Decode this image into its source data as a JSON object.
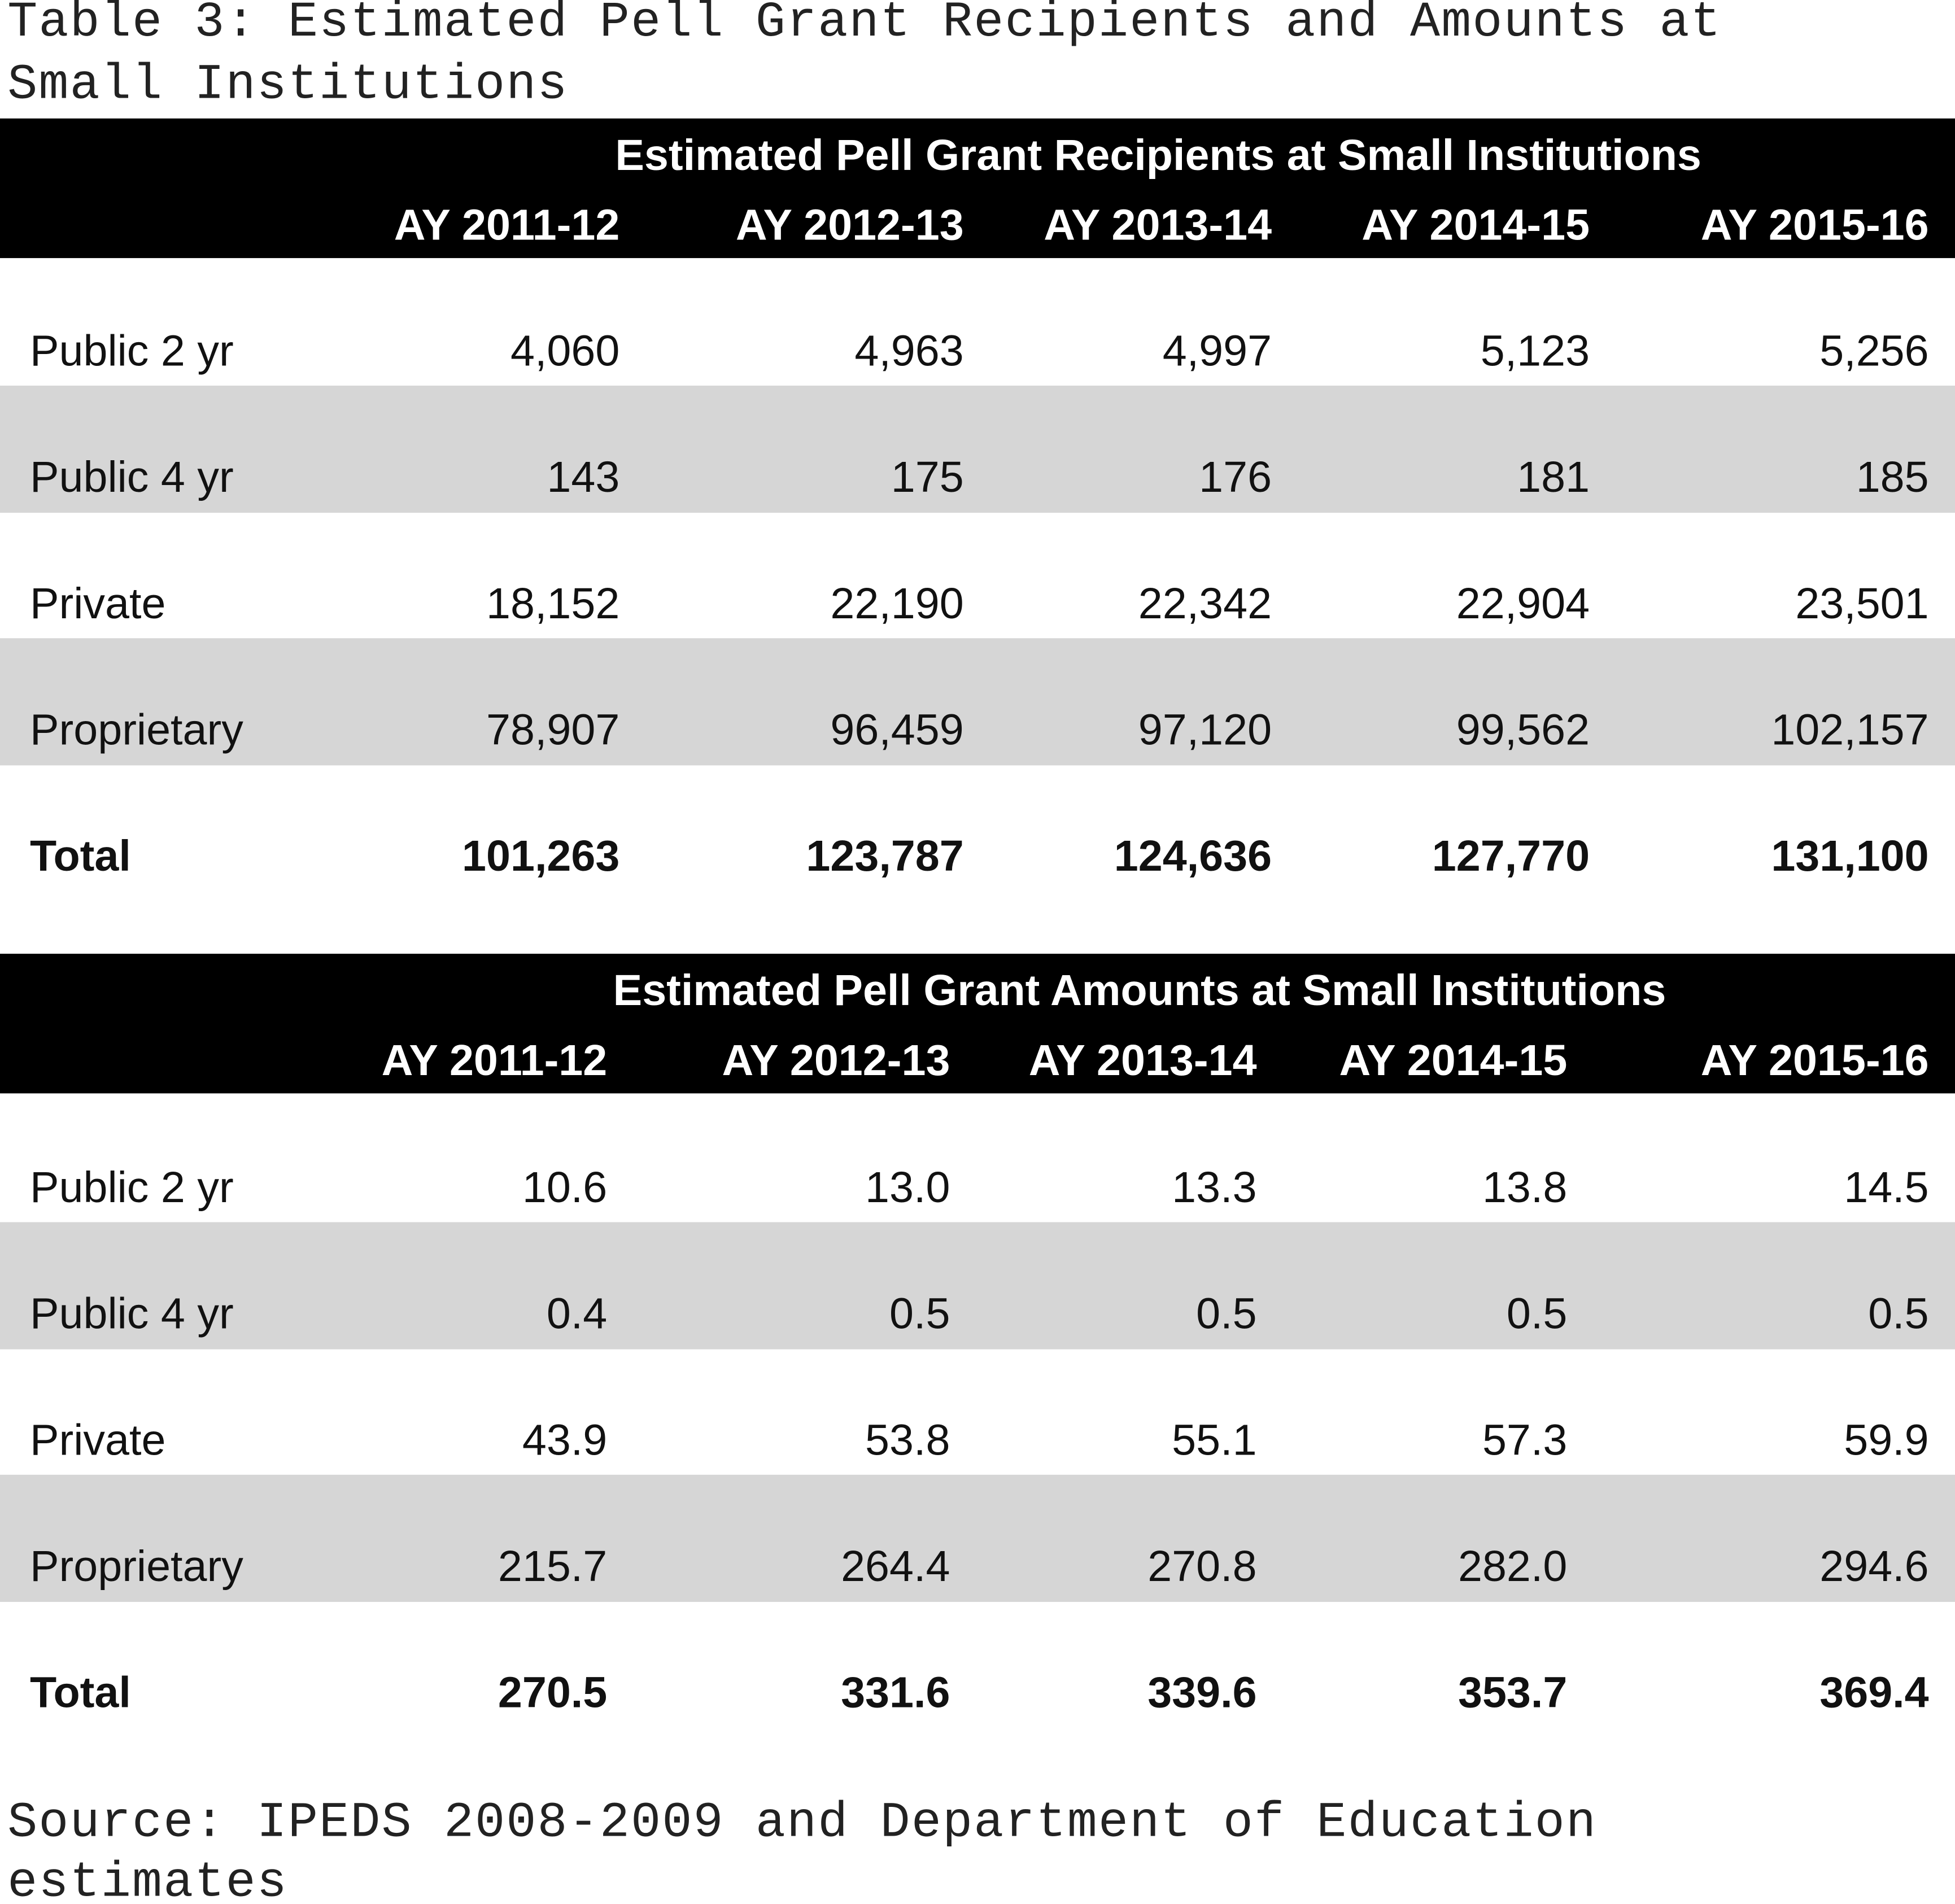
{
  "header": {
    "title_lines": [
      "Table 3: Estimated Pell Grant Recipients and Amounts at",
      "Small Institutions"
    ]
  },
  "tables": [
    {
      "heading": "Estimated Pell Grant Recipients at Small Institutions",
      "columns": [
        "AY 2011-12",
        "AY 2012-13",
        "AY 2013-14",
        "AY 2014-15",
        "AY 2015-16"
      ],
      "rows": [
        [
          "Public 2 yr",
          "4,060",
          "4,963",
          "4,997",
          "5,123",
          "5,256"
        ],
        [
          "Public 4 yr",
          "143",
          "175",
          "176",
          "181",
          "185"
        ],
        [
          "Private",
          "18,152",
          "22,190",
          "22,342",
          "22,904",
          "23,501"
        ],
        [
          "Proprietary",
          "78,907",
          "96,459",
          "97,120",
          "99,562",
          "102,157"
        ],
        [
          "Total",
          "101,263",
          "123,787",
          "124,636",
          "127,770",
          "131,100"
        ]
      ]
    },
    {
      "heading": "Estimated Pell Grant Amounts at Small Institutions",
      "columns": [
        "AY 2011-12",
        "AY 2012-13",
        "AY 2013-14",
        "AY 2014-15",
        "AY 2015-16"
      ],
      "rows": [
        [
          "Public 2 yr",
          "10.6",
          "13.0",
          "13.3",
          "13.8",
          "14.5"
        ],
        [
          "Public 4 yr",
          "0.4",
          "0.5",
          "0.5",
          "0.5",
          "0.5"
        ],
        [
          "Private",
          "43.9",
          "53.8",
          "55.1",
          "57.3",
          "59.9"
        ],
        [
          "Proprietary",
          "215.7",
          "264.4",
          "270.8",
          "282.0",
          "294.6"
        ],
        [
          "Total",
          "270.5",
          "331.6",
          "339.6",
          "353.7",
          "369.4"
        ]
      ]
    }
  ],
  "footer": {
    "source_lines": [
      "Source:  IPEDS 2008-2009 and Department of Education",
      "estimates"
    ]
  }
}
